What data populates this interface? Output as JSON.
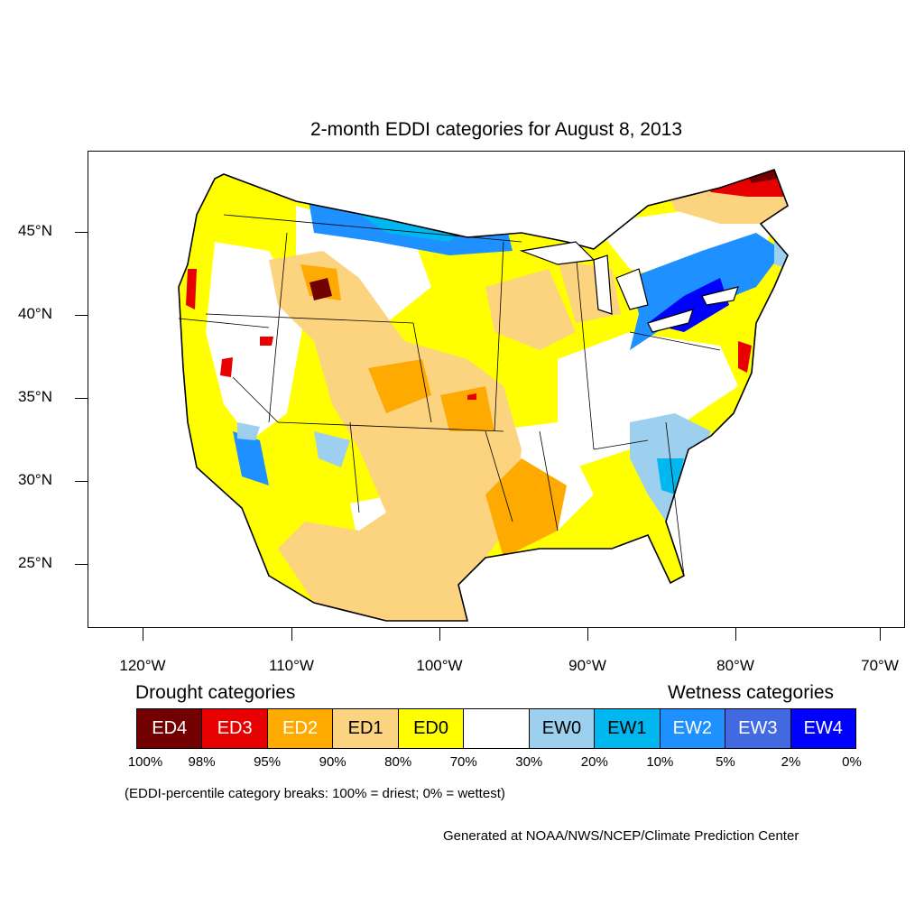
{
  "title": "2-month EDDI categories for August 8, 2013",
  "map": {
    "lat_labels": [
      "45°N",
      "40°N",
      "35°N",
      "30°N",
      "25°N"
    ],
    "lon_labels": [
      "120°W",
      "110°W",
      "100°W",
      "90°W",
      "80°W",
      "70°W"
    ]
  },
  "legend": {
    "drought_heading": "Drought categories",
    "wetness_heading": "Wetness categories",
    "categories": [
      {
        "label": "ED4",
        "color": "#730000",
        "text_color": "#ffffff"
      },
      {
        "label": "ED3",
        "color": "#e60000",
        "text_color": "#ffffff"
      },
      {
        "label": "ED2",
        "color": "#ffaa00",
        "text_color": "#ffffff"
      },
      {
        "label": "ED1",
        "color": "#fcd37f",
        "text_color": "#000000"
      },
      {
        "label": "ED0",
        "color": "#ffff00",
        "text_color": "#000000"
      },
      {
        "label": "",
        "color": "#ffffff",
        "text_color": "#000000"
      },
      {
        "label": "EW0",
        "color": "#9cd0ee",
        "text_color": "#000000"
      },
      {
        "label": "EW1",
        "color": "#00b7f0",
        "text_color": "#000000"
      },
      {
        "label": "EW2",
        "color": "#1e90ff",
        "text_color": "#ffffff"
      },
      {
        "label": "EW3",
        "color": "#4169e1",
        "text_color": "#ffffff"
      },
      {
        "label": "EW4",
        "color": "#0000ff",
        "text_color": "#ffffff"
      }
    ],
    "percentiles": [
      "100%",
      "98%",
      "95%",
      "90%",
      "80%",
      "70%",
      "30%",
      "20%",
      "10%",
      "5%",
      "2%",
      "0%"
    ]
  },
  "note": "(EDDI-percentile category breaks: 100% = driest; 0% = wettest)",
  "credit": "Generated at NOAA/NWS/NCEP/Climate Prediction Center"
}
